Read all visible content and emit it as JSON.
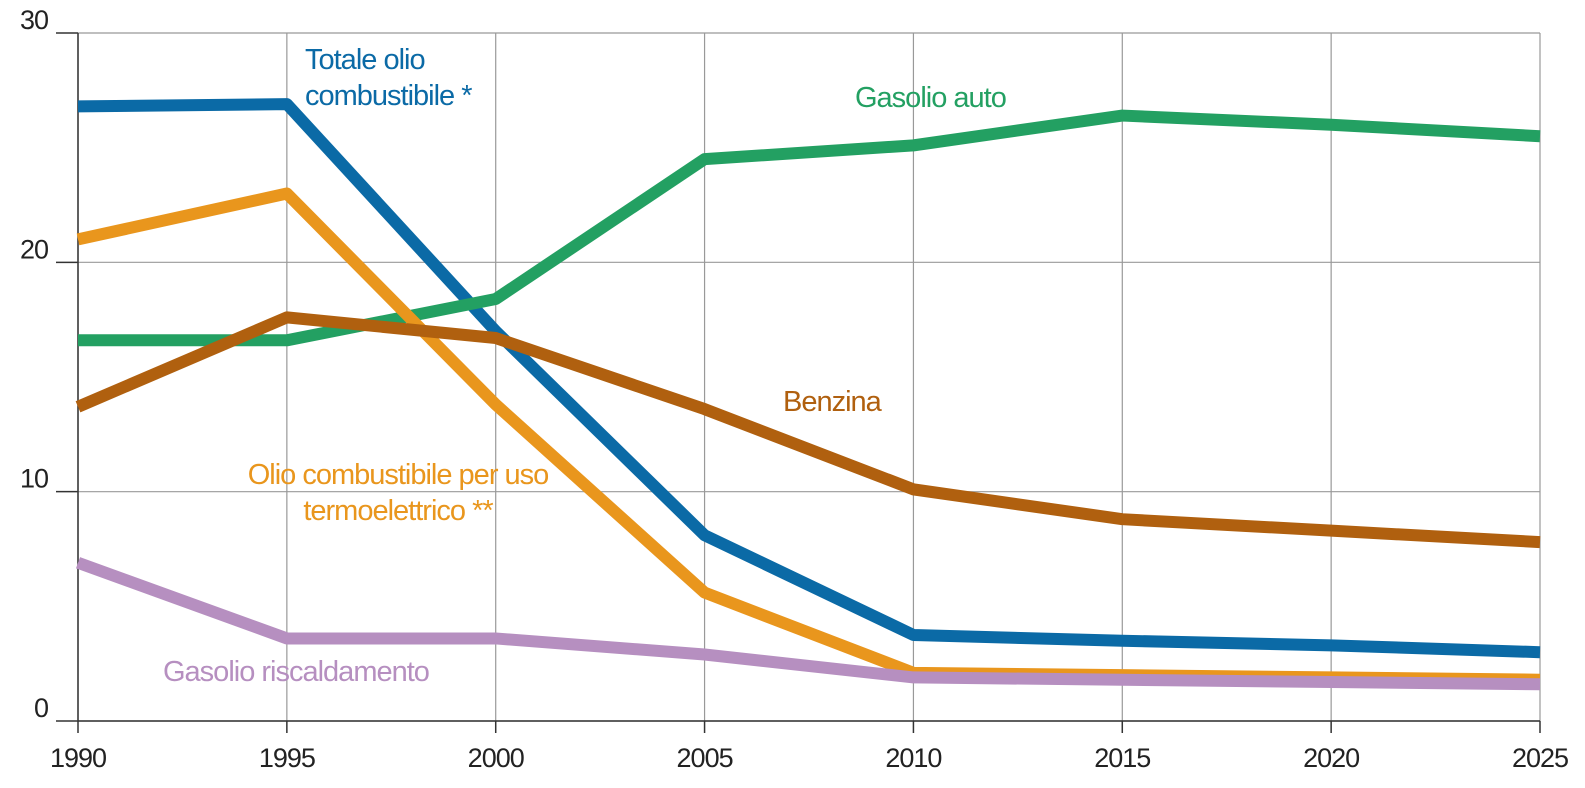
{
  "chart_data": {
    "type": "line",
    "x": [
      1990,
      1995,
      2000,
      2005,
      2010,
      2015,
      2020,
      2025
    ],
    "xlim": [
      1990,
      2025
    ],
    "xticks": [
      1990,
      1995,
      2000,
      2005,
      2010,
      2015,
      2020,
      2025
    ],
    "ylim": [
      0,
      30
    ],
    "yticks": [
      0,
      10,
      20,
      30
    ],
    "grid": true,
    "series": [
      {
        "name": "Totale olio combustibile *",
        "color": "#0b6aa6",
        "values": [
          26.8,
          26.9,
          17.0,
          8.1,
          3.75,
          3.5,
          3.3,
          3.0
        ]
      },
      {
        "name": "Gasolio auto",
        "color": "#23a062",
        "values": [
          16.6,
          16.6,
          18.4,
          24.5,
          25.1,
          26.4,
          26.0,
          25.5
        ]
      },
      {
        "name": "Olio combustibile per uso termoelettrico **",
        "color": "#e9961d",
        "values": [
          21.0,
          23.0,
          13.8,
          5.6,
          2.1,
          2.0,
          1.9,
          1.8
        ]
      },
      {
        "name": "Benzina",
        "color": "#b0600f",
        "values": [
          13.7,
          17.6,
          16.7,
          13.6,
          10.1,
          8.8,
          8.3,
          7.8
        ]
      },
      {
        "name": "Gasolio riscaldamento",
        "color": "#b68fc0",
        "values": [
          6.9,
          3.6,
          3.6,
          2.9,
          1.9,
          1.8,
          1.7,
          1.6
        ]
      }
    ]
  }
}
